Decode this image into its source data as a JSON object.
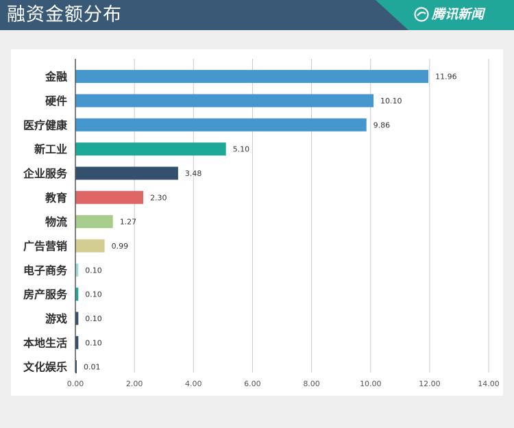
{
  "header": {
    "title": "融资金额分布",
    "brand": "腾讯新闻",
    "brand_icon": "tencent-news-logo-icon",
    "colors": {
      "bar": "#3a5976",
      "accent": "#21a79a"
    }
  },
  "chart_data": {
    "type": "bar",
    "orientation": "horizontal",
    "categories": [
      "金融",
      "硬件",
      "医疗健康",
      "新工业",
      "企业服务",
      "教育",
      "物流",
      "广告营销",
      "电子商务",
      "房产服务",
      "游戏",
      "本地生活",
      "文化娱乐"
    ],
    "values": [
      11.96,
      10.1,
      9.86,
      5.1,
      3.48,
      2.3,
      1.27,
      0.99,
      0.1,
      0.1,
      0.1,
      0.1,
      0.01
    ],
    "value_labels": [
      "11.96",
      "10.10",
      "9.86",
      "5.10",
      "3.48",
      "2.30",
      "1.27",
      "0.99",
      "0.10",
      "0.10",
      "0.10",
      "0.10",
      "0.01"
    ],
    "colors": [
      "#4596cd",
      "#4596cd",
      "#4596cd",
      "#1ea898",
      "#34506f",
      "#e06666",
      "#a8cc8c",
      "#d3cd8f",
      "#a0dcd6",
      "#21a79a",
      "#34506f",
      "#34506f",
      "#34506f"
    ],
    "xlim": [
      0,
      14
    ],
    "xticks": [
      "0.00",
      "2.00",
      "4.00",
      "6.00",
      "8.00",
      "10.00",
      "12.00",
      "14.00"
    ],
    "grid": "vertical",
    "legend": "none"
  }
}
